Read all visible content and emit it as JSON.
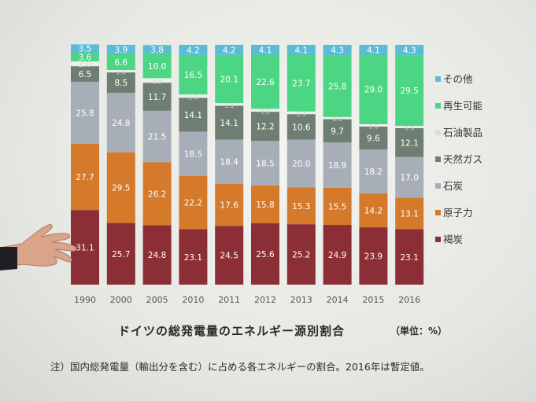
{
  "chart_data": {
    "type": "bar",
    "stacked": true,
    "percent": true,
    "categories": [
      "1990",
      "2000",
      "2005",
      "2010",
      "2011",
      "2012",
      "2013",
      "2014",
      "2015",
      "2016"
    ],
    "series": [
      {
        "name": "褐炭",
        "color": "#8b2e36",
        "values": [
          31.1,
          25.7,
          24.8,
          23.1,
          24.5,
          25.6,
          25.2,
          24.9,
          23.9,
          23.1
        ]
      },
      {
        "name": "原子力",
        "color": "#d5792a",
        "values": [
          27.7,
          29.5,
          26.2,
          22.2,
          17.6,
          15.8,
          15.3,
          15.5,
          14.2,
          13.1
        ]
      },
      {
        "name": "石炭",
        "color": "#a7aeb8",
        "values": [
          25.8,
          24.8,
          21.5,
          18.5,
          18.4,
          18.5,
          20.0,
          18.9,
          18.2,
          17.0
        ]
      },
      {
        "name": "天然ガス",
        "color": "#6f7e72",
        "values": [
          6.5,
          8.5,
          11.7,
          14.1,
          14.1,
          12.2,
          10.6,
          9.7,
          9.6,
          12.1
        ]
      },
      {
        "name": "石油製品",
        "color": "#eef0ee",
        "values": [
          2.0,
          1.0,
          1.9,
          1.4,
          1.1,
          1.2,
          1.1,
          0.9,
          1.0,
          0.9
        ]
      },
      {
        "name": "再生可能",
        "color": "#4cd683",
        "values": [
          3.6,
          6.6,
          10.0,
          16.5,
          20.1,
          22.6,
          23.7,
          25.8,
          29.0,
          29.5
        ]
      },
      {
        "name": "その他",
        "color": "#5bbcd6",
        "values": [
          3.5,
          3.9,
          3.8,
          4.2,
          4.2,
          4.1,
          4.1,
          4.3,
          4.1,
          4.3
        ]
      }
    ],
    "data_labels": [
      [
        "31.1",
        "27.7",
        "25.8",
        "6.5",
        "2.0",
        "3.6",
        "3.5"
      ],
      [
        "25.7",
        "29.5",
        "24.8",
        "8.5",
        "1.0",
        "6.6",
        "3.9"
      ],
      [
        "24.8",
        "26.2",
        "21.5",
        "11.7",
        "1.9",
        "10.0",
        "3.8"
      ],
      [
        "23.1",
        "22.2",
        "18.5",
        "14.1",
        "1.4",
        "16.5",
        "4.2"
      ],
      [
        "24.5",
        "17.6",
        "18.4",
        "14.1",
        "1.1",
        "20.1",
        "4.2"
      ],
      [
        "25.6",
        "15.8",
        "18.5",
        "12.2",
        "1.2",
        "22.6",
        "4.1"
      ],
      [
        "25.2",
        "15.3",
        "20.0",
        "10.6",
        "1.1",
        "23.7",
        "4.1"
      ],
      [
        "24.9",
        "15.5",
        "18.9",
        "9.7",
        "0.9",
        "25.8",
        "4.3"
      ],
      [
        "23.9",
        "14.2",
        "18.2",
        "9.6",
        "1.0",
        "29.0",
        "4.1"
      ],
      [
        "23.1",
        "13.1",
        "17.0",
        "12.1",
        "0.9",
        "29.5",
        "4.3"
      ]
    ],
    "legend_order": [
      "その他",
      "再生可能",
      "石油製品",
      "天然ガス",
      "石炭",
      "原子力",
      "褐炭"
    ],
    "legend_position": "right",
    "ylim": [
      0,
      100
    ],
    "grid": false,
    "title": "ドイツの総発電量のエネルギー源別割合",
    "unit_label": "（単位：%）",
    "note": "注）国内総発電量（輸出分を含む）に占める各エネルギーの割合。2016年は暫定値。"
  }
}
